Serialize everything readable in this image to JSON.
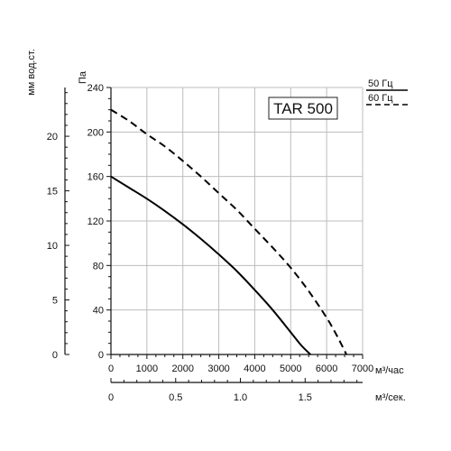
{
  "chart_data": {
    "type": "line",
    "title": "TAR 500",
    "x_axis": {
      "label": "м³/час",
      "range": [
        0,
        7000
      ],
      "ticks": [
        0,
        1000,
        2000,
        3000,
        4000,
        5000,
        6000,
        7000
      ],
      "tick_labels": [
        "0",
        "1000",
        "2000",
        "3000",
        "4000",
        "5000",
        "6000",
        "7000"
      ]
    },
    "x2_axis": {
      "label": "м³/сек.",
      "range": [
        0,
        1.944
      ],
      "ticks": [
        0,
        0.5,
        1.0,
        1.5
      ],
      "tick_labels": [
        "0",
        "0.5",
        "1.0",
        "1.5"
      ]
    },
    "y_axis": {
      "label": "Па",
      "range": [
        0,
        240
      ],
      "ticks": [
        0,
        40,
        80,
        120,
        160,
        200,
        240
      ],
      "tick_labels": [
        "0",
        "40",
        "80",
        "120",
        "160",
        "200",
        "240"
      ]
    },
    "y2_axis": {
      "label": "мм вод.ст.",
      "range": [
        0,
        24.47
      ],
      "ticks": [
        0,
        5,
        10,
        15,
        20
      ],
      "tick_labels": [
        "0",
        "5",
        "10",
        "15",
        "20"
      ]
    },
    "grid": true,
    "legend_position": "top-right",
    "series": [
      {
        "name": "50 Гц",
        "style": "solid",
        "color": "#000000",
        "x": [
          0,
          500,
          1000,
          1500,
          2000,
          2500,
          3000,
          3500,
          4000,
          4500,
          5000,
          5300,
          5550
        ],
        "y": [
          160,
          150,
          140,
          129,
          117,
          104,
          90,
          75,
          58,
          40,
          20,
          8,
          0
        ]
      },
      {
        "name": "60 Гц",
        "style": "dashed",
        "color": "#000000",
        "x": [
          0,
          500,
          1000,
          1500,
          2000,
          2500,
          3000,
          3500,
          4000,
          4500,
          5000,
          5500,
          6000,
          6300,
          6550
        ],
        "y": [
          220,
          210,
          198,
          187,
          174,
          160,
          145,
          130,
          113,
          96,
          78,
          57,
          33,
          16,
          0
        ]
      }
    ]
  }
}
